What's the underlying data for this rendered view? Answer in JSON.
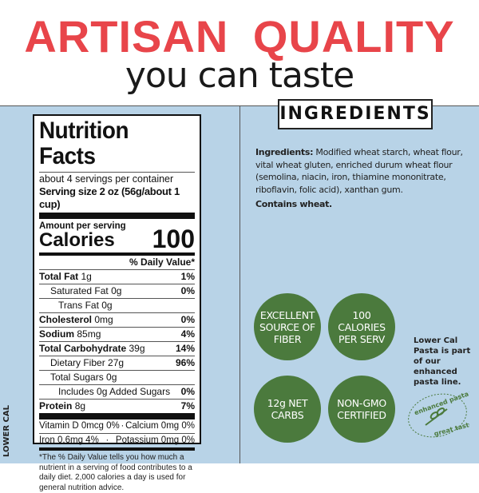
{
  "header": {
    "title": "ARTISAN  QUALITY",
    "subtitle": "you can taste"
  },
  "ingredients_heading": "INGREDIENTS",
  "side_label": "LOWER CAL",
  "nutrition": {
    "title": "Nutrition Facts",
    "servings": "about 4 servings per container",
    "serving_size_label": "Serving size",
    "serving_size": "2 oz (56g/about 1 cup)",
    "amount_per_serving": "Amount per serving",
    "calories_label": "Calories",
    "calories": "100",
    "dv_header": "% Daily Value*",
    "rows": [
      {
        "label": "Total Fat",
        "amount": "1g",
        "dv": "1%"
      },
      {
        "label": "Saturated Fat",
        "amount": "0g",
        "dv": "0%"
      },
      {
        "label": "Trans Fat",
        "amount": "0g",
        "dv": ""
      },
      {
        "label": "Cholesterol",
        "amount": "0mg",
        "dv": "0%"
      },
      {
        "label": "Sodium",
        "amount": "85mg",
        "dv": "4%"
      },
      {
        "label": "Total Carbohydrate",
        "amount": "39g",
        "dv": "14%"
      },
      {
        "label": "Dietary Fiber",
        "amount": "27g",
        "dv": "96%"
      },
      {
        "label": "Total Sugars",
        "amount": "0g",
        "dv": ""
      },
      {
        "label": "Includes 0g Added Sugars",
        "amount": "",
        "dv": "0%"
      },
      {
        "label": "Protein",
        "amount": "8g",
        "dv": "7%"
      }
    ],
    "vitamins": [
      {
        "left": "Vitamin D 0mcg 0%",
        "right": "Calcium 0mg 0%"
      },
      {
        "left": "Iron 0.6mg 4%",
        "right": "Potassium 0mg 0%"
      }
    ],
    "footnote": "*The % Daily Value tells you how much a nutrient in a serving of food contributes to a daily diet. 2,000 calories a day is used for general nutrition advice."
  },
  "ingredients": {
    "label": "Ingredients:",
    "text": " Modified wheat starch, wheat flour, vital wheat gluten, enriched durum wheat flour (semolina, niacin, iron, thiamine mononitrate, riboflavin, folic acid), xanthan gum.",
    "contains": "Contains wheat."
  },
  "badges": [
    "EXCELLENT SOURCE OF FIBER",
    "100 CALORIES PER SERV",
    "12g NET CARBS",
    "NON-GMO CERTIFIED"
  ],
  "side_note": "Lower Cal Pasta is part of our enhanced pasta line.",
  "seal": {
    "top": "enhanced pasta™",
    "bottom": "great taste!"
  },
  "colors": {
    "red": "#e8454a",
    "blue": "#b8d3e7",
    "green": "#4b7a3d"
  }
}
